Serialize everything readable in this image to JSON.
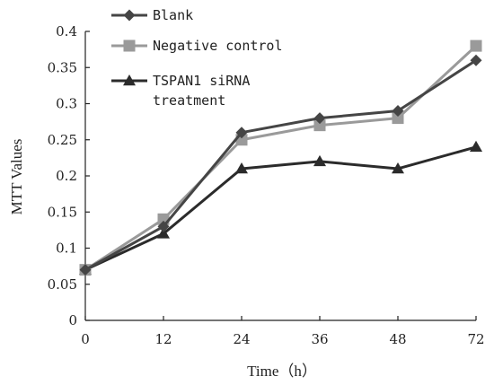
{
  "chart_data": {
    "type": "line",
    "title": "",
    "xlabel": "Time（h）",
    "ylabel": "MTT Values",
    "x": [
      0,
      12,
      24,
      36,
      48,
      72
    ],
    "x_tick_labels": [
      "0",
      "12",
      "24",
      "36",
      "48",
      "72"
    ],
    "ylim": [
      0,
      0.4
    ],
    "y_ticks": [
      0,
      0.05,
      0.1,
      0.15,
      0.2,
      0.25,
      0.3,
      0.35,
      0.4
    ],
    "y_tick_labels": [
      "0",
      "0.05",
      "0.1",
      "0.15",
      "0.2",
      "0.25",
      "0.3",
      "0.35",
      "0.4"
    ],
    "grid": false,
    "legend_position": "top-left",
    "series": [
      {
        "name": "Blank",
        "values": [
          0.07,
          0.13,
          0.26,
          0.28,
          0.29,
          0.36
        ],
        "color": "#454545",
        "marker": "diamond"
      },
      {
        "name": "Negative control",
        "values": [
          0.07,
          0.14,
          0.25,
          0.27,
          0.28,
          0.38
        ],
        "color": "#9a9a9a",
        "marker": "square"
      },
      {
        "name": "TSPAN1 siRNA treatment",
        "name_lines": [
          "TSPAN1 siRNA",
          "treatment"
        ],
        "values": [
          0.07,
          0.12,
          0.21,
          0.22,
          0.21,
          0.24
        ],
        "color": "#2b2b2b",
        "marker": "triangle"
      }
    ]
  }
}
